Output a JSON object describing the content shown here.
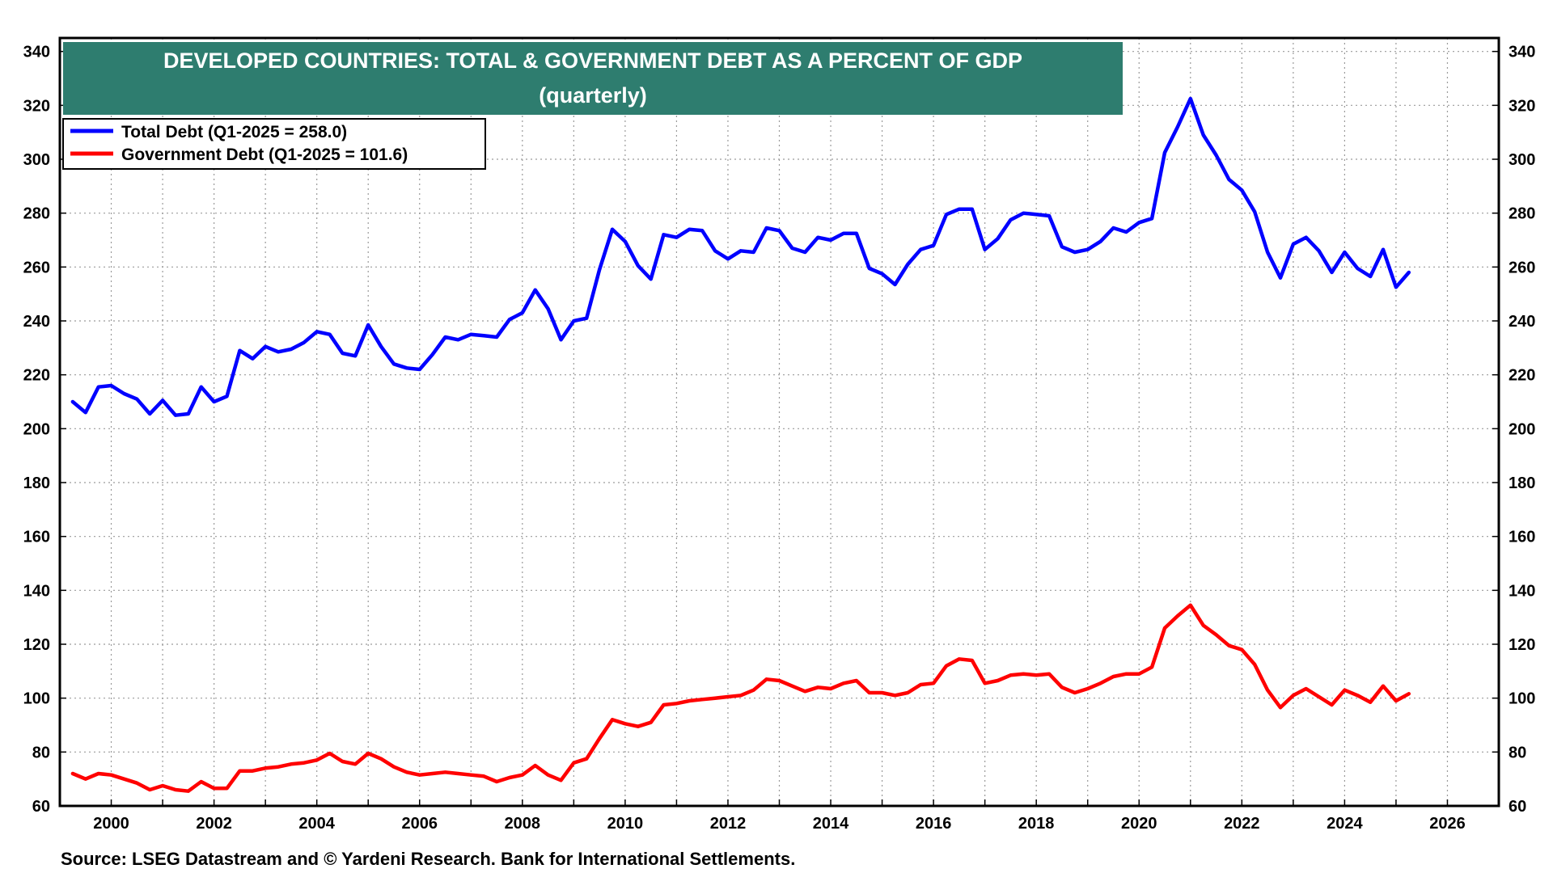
{
  "source": "Source: LSEG Datastream and © Yardeni Research. Bank for International Settlements.",
  "chart_data": {
    "type": "line",
    "title": "DEVELOPED COUNTRIES: TOTAL & GOVERNMENT DEBT AS A PERCENT OF GDP",
    "subtitle": "(quarterly)",
    "title_bg_color": "#2e7d6f",
    "xlim": [
      1999,
      2027
    ],
    "ylim": [
      60,
      345
    ],
    "x_ticks": [
      2000,
      2002,
      2004,
      2006,
      2008,
      2010,
      2012,
      2014,
      2016,
      2018,
      2020,
      2022,
      2024,
      2026
    ],
    "y_ticks": [
      60,
      80,
      100,
      120,
      140,
      160,
      180,
      200,
      220,
      240,
      260,
      280,
      300,
      320,
      340
    ],
    "grid": true,
    "legend_position": "top-left",
    "series": [
      {
        "name": "Total Debt (Q1-2025 = 258.0)",
        "color": "#0000ff",
        "values": [
          [
            1999.25,
            210
          ],
          [
            1999.5,
            206
          ],
          [
            1999.75,
            215.5
          ],
          [
            2000.0,
            216
          ],
          [
            2000.25,
            213
          ],
          [
            2000.5,
            211
          ],
          [
            2000.75,
            205.5
          ],
          [
            2001.0,
            210.5
          ],
          [
            2001.25,
            205
          ],
          [
            2001.5,
            205.5
          ],
          [
            2001.75,
            215.5
          ],
          [
            2002.0,
            210
          ],
          [
            2002.25,
            212
          ],
          [
            2002.5,
            229
          ],
          [
            2002.75,
            226
          ],
          [
            2003.0,
            230.5
          ],
          [
            2003.25,
            228.5
          ],
          [
            2003.5,
            229.5
          ],
          [
            2003.75,
            232
          ],
          [
            2004.0,
            236
          ],
          [
            2004.25,
            235
          ],
          [
            2004.5,
            228
          ],
          [
            2004.75,
            227
          ],
          [
            2005.0,
            238.5
          ],
          [
            2005.25,
            230.5
          ],
          [
            2005.5,
            224
          ],
          [
            2005.75,
            222.5
          ],
          [
            2006.0,
            222
          ],
          [
            2006.25,
            227.5
          ],
          [
            2006.5,
            234
          ],
          [
            2006.75,
            233
          ],
          [
            2007.0,
            235
          ],
          [
            2007.25,
            234.5
          ],
          [
            2007.5,
            234
          ],
          [
            2007.75,
            240.5
          ],
          [
            2008.0,
            243
          ],
          [
            2008.25,
            251.5
          ],
          [
            2008.5,
            244.5
          ],
          [
            2008.75,
            233
          ],
          [
            2009.0,
            240
          ],
          [
            2009.25,
            241
          ],
          [
            2009.5,
            259
          ],
          [
            2009.75,
            274
          ],
          [
            2010.0,
            269.5
          ],
          [
            2010.25,
            260.5
          ],
          [
            2010.5,
            255.5
          ],
          [
            2010.75,
            272
          ],
          [
            2011.0,
            271
          ],
          [
            2011.25,
            274
          ],
          [
            2011.5,
            273.5
          ],
          [
            2011.75,
            266
          ],
          [
            2012.0,
            263
          ],
          [
            2012.25,
            266
          ],
          [
            2012.5,
            265.5
          ],
          [
            2012.75,
            274.5
          ],
          [
            2013.0,
            273.5
          ],
          [
            2013.25,
            267
          ],
          [
            2013.5,
            265.5
          ],
          [
            2013.75,
            271
          ],
          [
            2014.0,
            270
          ],
          [
            2014.25,
            272.5
          ],
          [
            2014.5,
            272.5
          ],
          [
            2014.75,
            259.5
          ],
          [
            2015.0,
            257.5
          ],
          [
            2015.25,
            253.5
          ],
          [
            2015.5,
            261
          ],
          [
            2015.75,
            266.5
          ],
          [
            2016.0,
            268
          ],
          [
            2016.25,
            279.5
          ],
          [
            2016.5,
            281.5
          ],
          [
            2016.75,
            281.5
          ],
          [
            2017.0,
            266.5
          ],
          [
            2017.25,
            270.5
          ],
          [
            2017.5,
            277.5
          ],
          [
            2017.75,
            280
          ],
          [
            2018.0,
            279.5
          ],
          [
            2018.25,
            279
          ],
          [
            2018.5,
            267.5
          ],
          [
            2018.75,
            265.5
          ],
          [
            2019.0,
            266.5
          ],
          [
            2019.25,
            269.5
          ],
          [
            2019.5,
            274.5
          ],
          [
            2019.75,
            273
          ],
          [
            2020.0,
            276.5
          ],
          [
            2020.25,
            278
          ],
          [
            2020.5,
            302.5
          ],
          [
            2020.75,
            312
          ],
          [
            2021.0,
            322.5
          ],
          [
            2021.25,
            309
          ],
          [
            2021.5,
            301.5
          ],
          [
            2021.75,
            292.5
          ],
          [
            2022.0,
            288.5
          ],
          [
            2022.25,
            280.5
          ],
          [
            2022.5,
            265.5
          ],
          [
            2022.75,
            256
          ],
          [
            2023.0,
            268.5
          ],
          [
            2023.25,
            271
          ],
          [
            2023.5,
            266
          ],
          [
            2023.75,
            258
          ],
          [
            2024.0,
            265.5
          ],
          [
            2024.25,
            259.5
          ],
          [
            2024.5,
            256.5
          ],
          [
            2024.75,
            266.5
          ],
          [
            2025.0,
            252.5
          ],
          [
            2025.25,
            258
          ]
        ]
      },
      {
        "name": "Government Debt (Q1-2025 = 101.6)",
        "color": "#ff0000",
        "values": [
          [
            1999.25,
            72
          ],
          [
            1999.5,
            70
          ],
          [
            1999.75,
            72
          ],
          [
            2000.0,
            71.5
          ],
          [
            2000.25,
            70
          ],
          [
            2000.5,
            68.5
          ],
          [
            2000.75,
            66
          ],
          [
            2001.0,
            67.5
          ],
          [
            2001.25,
            66
          ],
          [
            2001.5,
            65.5
          ],
          [
            2001.75,
            69
          ],
          [
            2002.0,
            66.5
          ],
          [
            2002.25,
            66.5
          ],
          [
            2002.5,
            73
          ],
          [
            2002.75,
            73
          ],
          [
            2003.0,
            74
          ],
          [
            2003.25,
            74.5
          ],
          [
            2003.5,
            75.5
          ],
          [
            2003.75,
            76
          ],
          [
            2004.0,
            77
          ],
          [
            2004.25,
            79.5
          ],
          [
            2004.5,
            76.5
          ],
          [
            2004.75,
            75.5
          ],
          [
            2005.0,
            79.5
          ],
          [
            2005.25,
            77.5
          ],
          [
            2005.5,
            74.5
          ],
          [
            2005.75,
            72.5
          ],
          [
            2006.0,
            71.5
          ],
          [
            2006.25,
            72
          ],
          [
            2006.5,
            72.5
          ],
          [
            2006.75,
            72
          ],
          [
            2007.0,
            71.5
          ],
          [
            2007.25,
            71
          ],
          [
            2007.5,
            69
          ],
          [
            2007.75,
            70.5
          ],
          [
            2008.0,
            71.5
          ],
          [
            2008.25,
            75
          ],
          [
            2008.5,
            71.5
          ],
          [
            2008.75,
            69.5
          ],
          [
            2009.0,
            76
          ],
          [
            2009.25,
            77.5
          ],
          [
            2009.5,
            85
          ],
          [
            2009.75,
            92
          ],
          [
            2010.0,
            90.5
          ],
          [
            2010.25,
            89.5
          ],
          [
            2010.5,
            91
          ],
          [
            2010.75,
            97.5
          ],
          [
            2011.0,
            98
          ],
          [
            2011.25,
            99
          ],
          [
            2011.5,
            99.5
          ],
          [
            2011.75,
            100
          ],
          [
            2012.0,
            100.5
          ],
          [
            2012.25,
            101
          ],
          [
            2012.5,
            103
          ],
          [
            2012.75,
            107
          ],
          [
            2013.0,
            106.5
          ],
          [
            2013.25,
            104.5
          ],
          [
            2013.5,
            102.5
          ],
          [
            2013.75,
            104
          ],
          [
            2014.0,
            103.5
          ],
          [
            2014.25,
            105.5
          ],
          [
            2014.5,
            106.5
          ],
          [
            2014.75,
            102
          ],
          [
            2015.0,
            102
          ],
          [
            2015.25,
            101
          ],
          [
            2015.5,
            102
          ],
          [
            2015.75,
            105
          ],
          [
            2016.0,
            105.5
          ],
          [
            2016.25,
            112
          ],
          [
            2016.5,
            114.5
          ],
          [
            2016.75,
            114
          ],
          [
            2017.0,
            105.5
          ],
          [
            2017.25,
            106.5
          ],
          [
            2017.5,
            108.5
          ],
          [
            2017.75,
            109
          ],
          [
            2018.0,
            108.5
          ],
          [
            2018.25,
            109
          ],
          [
            2018.5,
            104
          ],
          [
            2018.75,
            102
          ],
          [
            2019.0,
            103.5
          ],
          [
            2019.25,
            105.5
          ],
          [
            2019.5,
            108
          ],
          [
            2019.75,
            109
          ],
          [
            2020.0,
            109
          ],
          [
            2020.25,
            111.5
          ],
          [
            2020.5,
            126
          ],
          [
            2020.75,
            130.5
          ],
          [
            2021.0,
            134.5
          ],
          [
            2021.25,
            127
          ],
          [
            2021.5,
            123.5
          ],
          [
            2021.75,
            119.5
          ],
          [
            2022.0,
            118
          ],
          [
            2022.25,
            112.5
          ],
          [
            2022.5,
            103
          ],
          [
            2022.75,
            96.5
          ],
          [
            2023.0,
            101
          ],
          [
            2023.25,
            103.5
          ],
          [
            2023.5,
            100.5
          ],
          [
            2023.75,
            97.5
          ],
          [
            2024.0,
            103
          ],
          [
            2024.25,
            101
          ],
          [
            2024.5,
            98.5
          ],
          [
            2024.75,
            104.5
          ],
          [
            2025.0,
            99
          ],
          [
            2025.25,
            101.6
          ]
        ]
      }
    ]
  }
}
